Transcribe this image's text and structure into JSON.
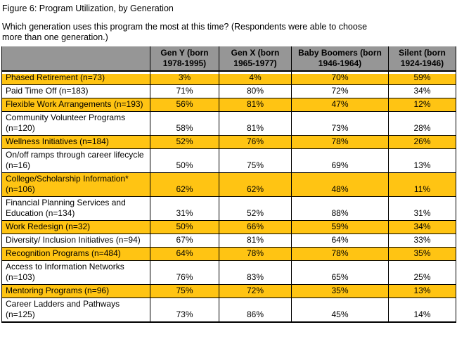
{
  "figure_title": "Figure 6: Program Utilization, by Generation",
  "question": "Which generation uses this program the most at this time? (Respondents were able to choose more than one generation.)",
  "colors": {
    "highlight": "#ffc413",
    "header_bg": "#969696",
    "border": "#000000"
  },
  "table": {
    "columns": [
      "",
      "Gen Y (born 1978-1995)",
      "Gen X (born 1965-1977)",
      "Baby Boomers (born 1946-1964)",
      "Silent (born 1924-1946)"
    ],
    "rows": [
      {
        "label": "Phased Retirement (n=73)",
        "values": [
          "3%",
          "4%",
          "70%",
          "59%"
        ],
        "highlighted": true
      },
      {
        "label": "Paid Time Off (n=183)",
        "values": [
          "71%",
          "80%",
          "72%",
          "34%"
        ],
        "highlighted": false
      },
      {
        "label": "Flexible Work Arrangements (n=193)",
        "values": [
          "56%",
          "81%",
          "47%",
          "12%"
        ],
        "highlighted": true
      },
      {
        "label": "Community Volunteer Programs (n=120)",
        "values": [
          "58%",
          "81%",
          "73%",
          "28%"
        ],
        "highlighted": false
      },
      {
        "label": "Wellness Initiatives (n=184)",
        "values": [
          "52%",
          "76%",
          "78%",
          "26%"
        ],
        "highlighted": true
      },
      {
        "label": "On/off ramps through career lifecycle (n=16)",
        "values": [
          "50%",
          "75%",
          "69%",
          "13%"
        ],
        "highlighted": false
      },
      {
        "label": "College/Scholarship Information* (n=106)",
        "values": [
          "62%",
          "62%",
          "48%",
          "11%"
        ],
        "highlighted": true
      },
      {
        "label": "Financial Planning Services and Education (n=134)",
        "values": [
          "31%",
          "52%",
          "88%",
          "31%"
        ],
        "highlighted": false
      },
      {
        "label": "Work Redesign (n=32)",
        "values": [
          "50%",
          "66%",
          "59%",
          "34%"
        ],
        "highlighted": true
      },
      {
        "label": "Diversity/ Inclusion Initiatives (n=94)",
        "values": [
          "67%",
          "81%",
          "64%",
          "33%"
        ],
        "highlighted": false
      },
      {
        "label": "Recognition Programs (n=484)",
        "values": [
          "64%",
          "78%",
          "78%",
          "35%"
        ],
        "highlighted": true
      },
      {
        "label": "Access to Information Networks (n=103)",
        "values": [
          "76%",
          "83%",
          "65%",
          "25%"
        ],
        "highlighted": false
      },
      {
        "label": "Mentoring Programs (n=96)",
        "values": [
          "75%",
          "72%",
          "35%",
          "13%"
        ],
        "highlighted": true
      },
      {
        "label": "Career Ladders and Pathways (n=125)",
        "values": [
          "73%",
          "86%",
          "45%",
          "14%"
        ],
        "highlighted": false
      }
    ]
  }
}
